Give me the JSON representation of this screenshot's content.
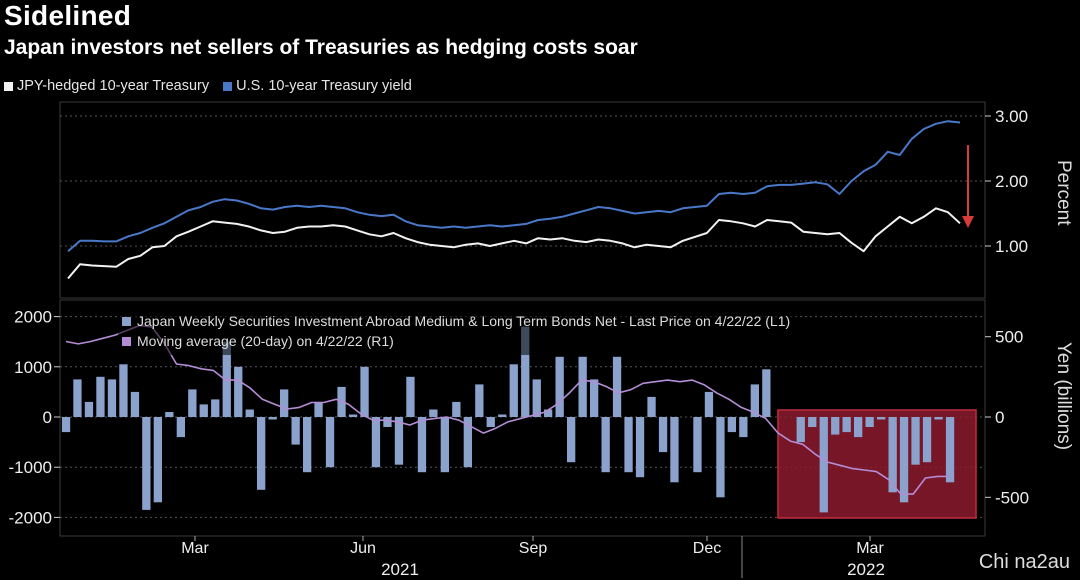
{
  "title": "Sidelined",
  "subtitle": "Japan investors net sellers of Treasuries as hedging costs soar",
  "colors": {
    "hedged": "#f2f2f2",
    "ust": "#4a78c8",
    "bars": "#8aa2cc",
    "ma": "#b58cd6",
    "highlight": "#8b1a2e",
    "arrow": "#d83a3a"
  },
  "chart_data": [
    {
      "type": "line",
      "ylabel": "Percent",
      "ylim": [
        0.4,
        3.15
      ],
      "yticks": [
        "3.00",
        "2.00",
        "1.00"
      ],
      "x_labels": [
        "Mar",
        "Jun",
        "Sep",
        "Dec",
        "Mar"
      ],
      "year_labels": [
        "2021",
        "2022"
      ],
      "x_range": [
        0,
        64
      ],
      "series": [
        {
          "name": "JPY-hedged 10-year Treasury",
          "values": [
            0.5,
            0.72,
            0.7,
            0.69,
            0.68,
            0.8,
            0.85,
            0.98,
            1.0,
            1.15,
            1.22,
            1.3,
            1.38,
            1.36,
            1.34,
            1.3,
            1.24,
            1.2,
            1.22,
            1.28,
            1.3,
            1.3,
            1.32,
            1.3,
            1.24,
            1.18,
            1.15,
            1.2,
            1.12,
            1.06,
            1.02,
            1.0,
            0.98,
            1.02,
            1.04,
            1.0,
            1.04,
            1.08,
            1.04,
            1.12,
            1.1,
            1.12,
            1.08,
            1.06,
            1.1,
            1.08,
            1.04,
            0.98,
            1.02,
            1.0,
            0.98,
            1.08,
            1.14,
            1.2,
            1.4,
            1.38,
            1.35,
            1.3,
            1.4,
            1.38,
            1.36,
            1.22,
            1.2,
            1.18,
            1.2,
            1.05,
            0.92,
            1.15,
            1.3,
            1.45,
            1.35,
            1.45,
            1.58,
            1.52,
            1.35
          ]
        },
        {
          "name": "U.S. 10-year Treasury yield",
          "values": [
            0.92,
            1.08,
            1.08,
            1.07,
            1.07,
            1.15,
            1.2,
            1.28,
            1.35,
            1.45,
            1.55,
            1.6,
            1.68,
            1.72,
            1.7,
            1.65,
            1.58,
            1.56,
            1.6,
            1.62,
            1.6,
            1.62,
            1.6,
            1.58,
            1.52,
            1.48,
            1.46,
            1.48,
            1.38,
            1.32,
            1.3,
            1.28,
            1.3,
            1.28,
            1.3,
            1.32,
            1.3,
            1.32,
            1.34,
            1.4,
            1.42,
            1.45,
            1.5,
            1.55,
            1.6,
            1.58,
            1.54,
            1.5,
            1.52,
            1.54,
            1.52,
            1.58,
            1.6,
            1.62,
            1.8,
            1.82,
            1.8,
            1.82,
            1.92,
            1.94,
            1.94,
            1.96,
            1.98,
            1.95,
            1.8,
            2.0,
            2.15,
            2.25,
            2.45,
            2.4,
            2.65,
            2.8,
            2.88,
            2.92,
            2.9
          ]
        }
      ]
    },
    {
      "type": "bar",
      "ylim_left": [
        -2150,
        2250
      ],
      "ylim_right": [
        -680,
        610
      ],
      "yticks_left": [
        "2000",
        "1000",
        "0",
        "-1000",
        "-2000"
      ],
      "yticks_right": [
        "500",
        "0",
        "-500"
      ],
      "ylabel_right": "Yen (billions)",
      "series": [
        {
          "name": "Japan Weekly Securities Investment Abroad Medium & Long Term Bonds Net - Last Price on 4/22/22 (L1)",
          "values": [
            -300,
            750,
            300,
            800,
            750,
            1050,
            500,
            -1850,
            -1700,
            100,
            -400,
            550,
            250,
            350,
            1500,
            1000,
            150,
            -1450,
            -50,
            550,
            -550,
            -1100,
            300,
            -1000,
            600,
            50,
            1000,
            -1000,
            -200,
            -950,
            800,
            -1100,
            150,
            -1100,
            300,
            -1000,
            650,
            -200,
            50,
            1050,
            1800,
            750,
            150,
            1200,
            -900,
            1200,
            750,
            -1100,
            1200,
            -1100,
            -1200,
            400,
            -700,
            -1300,
            0,
            -1100,
            500,
            -1600,
            -300,
            -400,
            650,
            950,
            0,
            0,
            -500,
            -200,
            -1900,
            -350,
            -300,
            -400,
            -200,
            -50,
            -1500,
            -1700,
            -950,
            -900,
            -50,
            -1300
          ]
        },
        {
          "name": "Moving average (20-day) on 4/22/22 (R1)",
          "values": [
            470,
            455,
            470,
            490,
            510,
            540,
            570,
            560,
            460,
            330,
            320,
            300,
            290,
            230,
            230,
            180,
            110,
            80,
            50,
            60,
            90,
            90,
            110,
            80,
            20,
            -20,
            -20,
            -30,
            -50,
            -20,
            -10,
            0,
            -20,
            -60,
            -100,
            -70,
            -30,
            -10,
            10,
            30,
            80,
            150,
            230,
            220,
            190,
            150,
            170,
            210,
            220,
            230,
            220,
            230,
            200,
            150,
            110,
            60,
            30,
            -10,
            -100,
            -150,
            -170,
            -230,
            -280,
            -300,
            -320,
            -330,
            -340,
            -390,
            -480,
            -480,
            -380,
            -370,
            -370
          ]
        }
      ],
      "annotation": "highlight-box"
    }
  ],
  "watermark": "Chi na2au"
}
